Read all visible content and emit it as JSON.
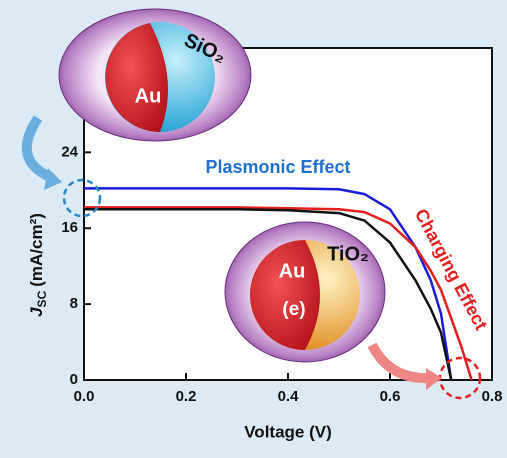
{
  "chart_data": {
    "type": "line",
    "x_label": "Voltage (V)",
    "y_label": {
      "symbol": "J",
      "subscript": "SC",
      "unit": "(mA/cm²)"
    },
    "annotations": {
      "plasmonic": "Plasmonic Effect",
      "charging": "Charging Effect"
    },
    "particles": {
      "top": {
        "core": "Au",
        "shell": "SiO₂"
      },
      "bottom": {
        "core": "Au",
        "carrier": "(e)",
        "shell": "TiO₂"
      }
    },
    "x": [
      0,
      0.1,
      0.2,
      0.3,
      0.4,
      0.5,
      0.55,
      0.6,
      0.65,
      0.68,
      0.7,
      0.72,
      0.74,
      0.76
    ],
    "series": [
      {
        "color": "#1a1adb",
        "values": [
          20.2,
          20.2,
          20.2,
          20.2,
          20.2,
          20.1,
          19.6,
          18,
          14,
          10.5,
          7,
          0,
          null,
          null
        ]
      },
      {
        "color": "#e61e1e",
        "values": [
          18.2,
          18.2,
          18.2,
          18.2,
          18.1,
          18.0,
          17.7,
          16.5,
          14,
          11.5,
          9.5,
          6.5,
          3.5,
          0
        ]
      },
      {
        "color": "#111111",
        "values": [
          18.0,
          18.0,
          18.0,
          18.0,
          17.9,
          17.6,
          16.8,
          14.5,
          10.5,
          7.5,
          5,
          0,
          null,
          null
        ]
      }
    ],
    "xlim": [
      0,
      0.8
    ],
    "ylim": [
      0,
      35
    ],
    "xticks": [
      {
        "value": 0,
        "label": "0.0"
      },
      {
        "value": 0.2,
        "label": "0.2"
      },
      {
        "value": 0.4,
        "label": "0.4"
      },
      {
        "value": 0.6,
        "label": "0.6"
      },
      {
        "value": 0.8,
        "label": "0.8"
      }
    ],
    "yticks": [
      0,
      8,
      16,
      24
    ]
  }
}
